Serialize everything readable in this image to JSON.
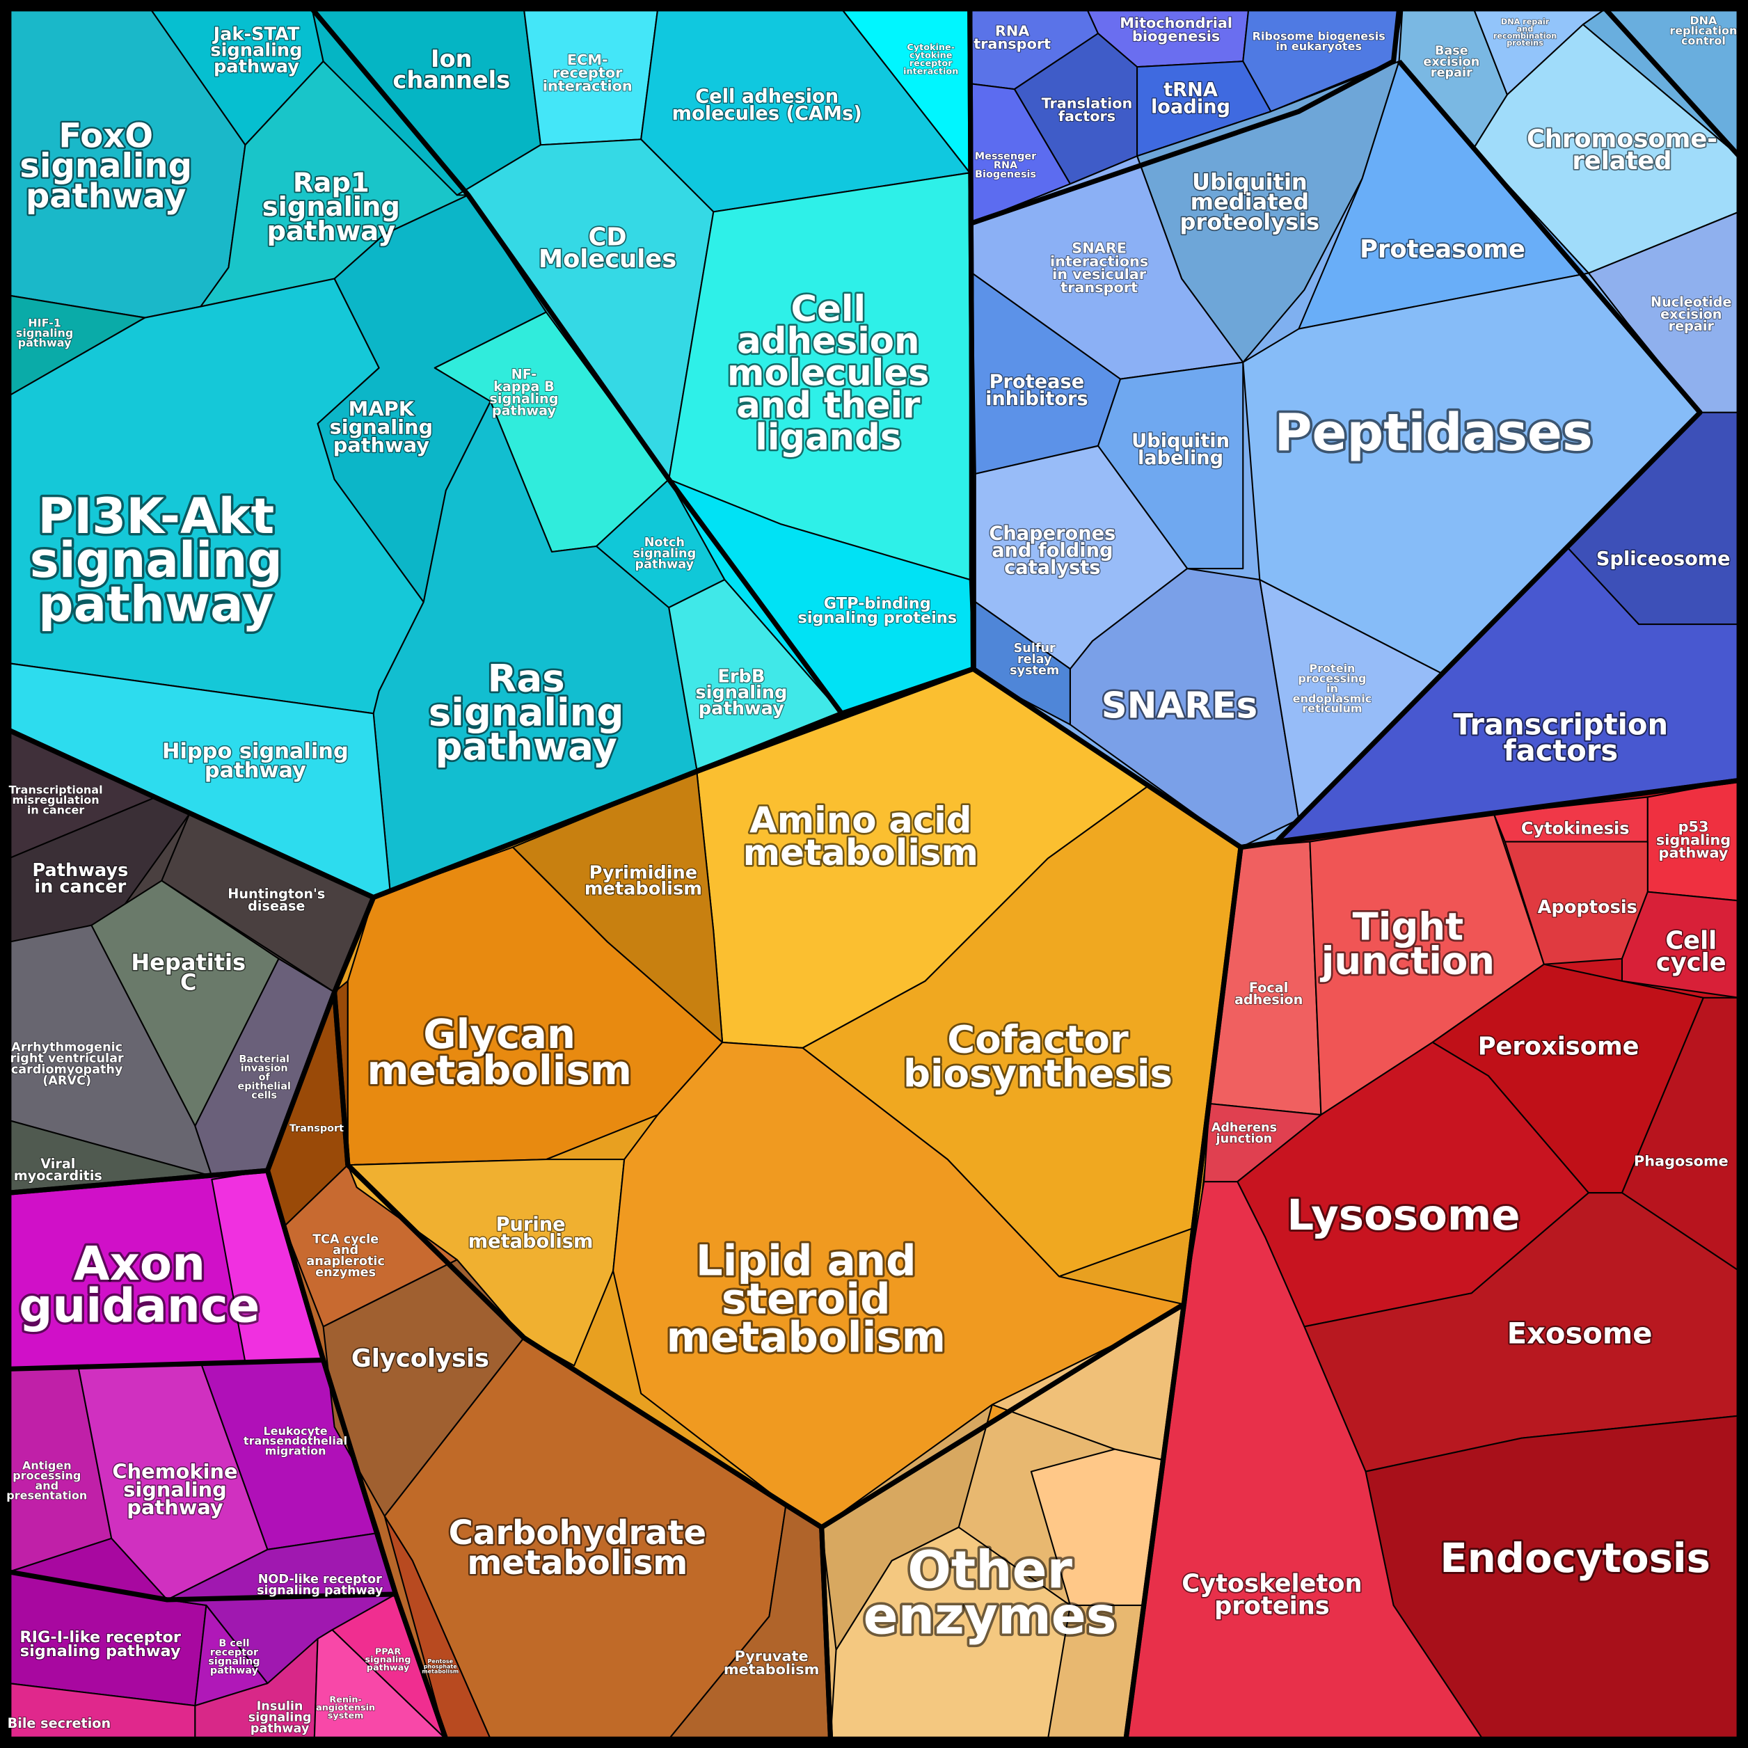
{
  "colors": {
    "signaling": "#15c8d8",
    "genetic_information": "#7fb0f0",
    "cellular_processes": "#c8141e",
    "disease": "#4a4040",
    "organismal_systems": "#d010c8",
    "metabolism": "#e8a020",
    "carbohydrate": "#b8672a",
    "other_enzymes": "#e8b870"
  },
  "labels": {
    "foxo": "FoxO\nsignaling\npathway",
    "jakstat": "Jak-STAT\nsignaling\npathway",
    "ion": "Ion\nchannels",
    "ecm": "ECM-\nreceptor\ninteraction",
    "cams": "Cell adhesion\nmolecules (CAMs)",
    "cytokine": "Cytokine-\ncytokine\nreceptor\ninteraction",
    "rap1": "Rap1\nsignaling\npathway",
    "cd": "CD\nMolecules",
    "hif1": "HIF-1\nsignaling\npathway",
    "cam_ligands": "Cell\nadhesion\nmolecules\nand their\nligands",
    "nfkb": "NF-\nkappa B\nsignaling\npathway",
    "mapk": "MAPK\nsignaling\npathway",
    "pi3k": "PI3K-Akt\nsignaling\npathway",
    "notch": "Notch\nsignaling\npathway",
    "gtp": "GTP-binding\nsignaling proteins",
    "erbb": "ErbB\nsignaling\npathway",
    "ras": "Ras\nsignaling\npathway",
    "hippo": "Hippo signaling\npathway",
    "transcriptional_misreg": "Transcriptional\nmisregulation\nin cancer",
    "pathways_cancer": "Pathways\nin cancer",
    "huntington": "Huntington's\ndisease",
    "hepatitis": "Hepatitis\nC",
    "arvc": "Arrhythmogenic\nright ventricular\ncardiomyopathy\n(ARVC)",
    "bacterial": "Bacterial\ninvasion\nof\nepithelial\ncells",
    "viral": "Viral\nmyocarditis",
    "axon": "Axon\nguidance",
    "antigen": "Antigen\nprocessing\nand\npresentation",
    "chemokine": "Chemokine\nsignaling\npathway",
    "leukocyte": "Leukocyte\ntransendothelial\nmigration",
    "nod": "NOD-like receptor\nsignaling pathway",
    "rig": "RIG-I-like receptor\nsignaling pathway",
    "bcell": "B cell\nreceptor\nsignaling\npathway",
    "insulin": "Insulin\nsignaling\npathway",
    "renin": "Renin-\nangiotensin\nsystem",
    "ppar": "PPAR\nsignaling\npathway",
    "bile": "Bile secretion",
    "pentose": "Pentose\nphosphate\nmetabolism",
    "transport": "Transport",
    "tca": "TCA cycle\nand\nanaplerotic\nenzymes",
    "glycolysis": "Glycolysis",
    "carbohydrate": "Carbohydrate\nmetabolism",
    "pyruvate": "Pyruvate\nmetabolism",
    "amino": "Amino acid\nmetabolism",
    "pyrimidine": "Pyrimidine\nmetabolism",
    "glycan": "Glycan\nmetabolism",
    "cofactor": "Cofactor\nbiosynthesis",
    "purine": "Purine\nmetabolism",
    "lipid": "Lipid and\nsteroid\nmetabolism",
    "other": "Other\nenzymes",
    "rna_transport": "RNA\ntransport",
    "mito": "Mitochondrial\nbiogenesis",
    "ribosome": "Ribosome biogenesis\nin eukaryotes",
    "base_excision": "Base\nexcision\nrepair",
    "dna_repair": "DNA repair\nand\nrecombination\nproteins",
    "dna_replication": "DNA\nreplication\ncontrol",
    "translation": "Translation\nfactors",
    "trna": "tRNA\nloading",
    "mrna": "Messenger\nRNA\nBiogenesis",
    "ubiq_med": "Ubiquitin\nmediated\nproteolysis",
    "chromosome": "Chromosome-\nrelated",
    "proteasome": "Proteasome",
    "snare_int": "SNARE\ninteractions\nin vesicular\ntransport",
    "nucleotide": "Nucleotide\nexcision\nrepair",
    "protease_inh": "Protease\ninhibitors",
    "peptidases": "Peptidases",
    "ubiq_label": "Ubiquitin\nlabeling",
    "chaperones": "Chaperones\nand folding\ncatalysts",
    "spliceosome": "Spliceosome",
    "sulfur": "Sulfur\nrelay\nsystem",
    "snares": "SNAREs",
    "protein_er": "Protein\nprocessing\nin\nendoplasmic\nreticulum",
    "tf": "Transcription\nfactors",
    "cytokinesis": "Cytokinesis",
    "p53": "p53\nsignaling\npathway",
    "apoptosis": "Apoptosis",
    "cellcycle": "Cell\ncycle",
    "tight": "Tight\njunction",
    "focal": "Focal\nadhesion",
    "peroxisome": "Peroxisome",
    "adherens": "Adherens\njunction",
    "phagosome": "Phagosome",
    "lysosome": "Lysosome",
    "exosome": "Exosome",
    "endocytosis": "Endocytosis",
    "cytoskeleton": "Cytoskeleton\nproteins"
  }
}
